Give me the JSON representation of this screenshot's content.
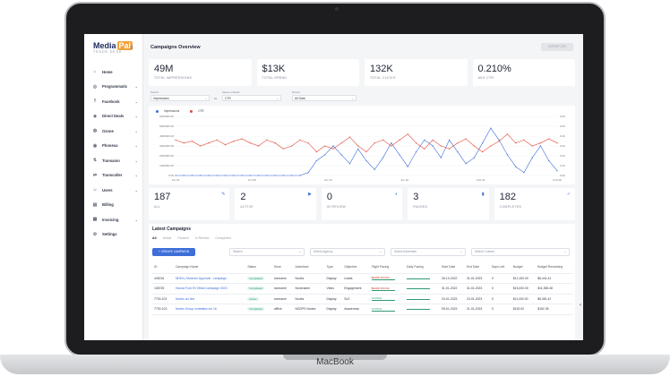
{
  "device_label": "MacBook",
  "logo": {
    "text": "Media",
    "tag": "Pal",
    "sub": "TRADE DESK"
  },
  "sidebar": {
    "items": [
      {
        "label": "Home",
        "icon": "home-icon",
        "glyph": "⌂",
        "chevron": false
      },
      {
        "label": "Programmatic",
        "icon": "gamepad-icon",
        "glyph": "◎",
        "chevron": true
      },
      {
        "label": "Facebook",
        "icon": "facebook-icon",
        "glyph": "f",
        "chevron": true
      },
      {
        "label": "Direct Deals",
        "icon": "handshake-icon",
        "glyph": "◈",
        "chevron": true
      },
      {
        "label": "Ozone",
        "icon": "globe-icon",
        "glyph": "◍",
        "chevron": true
      },
      {
        "label": "Phonexa",
        "icon": "shield-icon",
        "glyph": "◉",
        "chevron": true
      },
      {
        "label": "Transaion",
        "icon": "transaction-icon",
        "glyph": "⇅",
        "chevron": true
      },
      {
        "label": "Transcoller",
        "icon": "transfer-icon",
        "glyph": "⇄",
        "chevron": true
      },
      {
        "label": "Users",
        "icon": "users-icon",
        "glyph": "☺",
        "chevron": true
      },
      {
        "label": "Billing",
        "icon": "billing-icon",
        "glyph": "▤",
        "chevron": false
      },
      {
        "label": "Invoicing",
        "icon": "invoice-icon",
        "glyph": "▦",
        "chevron": true
      },
      {
        "label": "Settings",
        "icon": "gear-icon",
        "glyph": "⚙",
        "chevron": false
      }
    ]
  },
  "header": {
    "title": "Campaigns Overview",
    "export_label": "EXPORT CSV"
  },
  "stats": [
    {
      "value": "49M",
      "label": "TOTAL IMPRESSIONS"
    },
    {
      "value": "$13K",
      "label": "TOTAL SPEND"
    },
    {
      "value": "132K",
      "label": "TOTAL CLICKS"
    },
    {
      "value": "0.210%",
      "label": "AVG CTR"
    }
  ],
  "filters": {
    "period_label": "Period",
    "period_value": "Impressions",
    "vs": "vs",
    "compare_label": "Select a Metric",
    "compare_value": "CTR",
    "range_label": "Period",
    "range_value": "All Data"
  },
  "chart_data": {
    "type": "line",
    "x_ticks": [
      "Jun 01",
      "Jun 08",
      "Jun 15",
      "Jun 22",
      "Feb 01",
      "Feb 08"
    ],
    "series": [
      {
        "name": "Impressions",
        "color": "#3e6ed8",
        "values": [
          0,
          0,
          0,
          0,
          0,
          0,
          0,
          0,
          0,
          0,
          0,
          0,
          0,
          0,
          0,
          0,
          0.05,
          0.25,
          0.35,
          0.5,
          0.35,
          0.2,
          0.45,
          0.25,
          0.1,
          0.3,
          0.55,
          0.35,
          0.15,
          0.4,
          0.6,
          0.5,
          0.3,
          0.6,
          0.4,
          0.2,
          0.3,
          0.55,
          0.8,
          0.6,
          0.35,
          0.15,
          0.05,
          0.3,
          0.5,
          0.25,
          0.08
        ]
      },
      {
        "name": "CTR",
        "color": "#e24b3b",
        "values": [
          0.6,
          0.55,
          0.58,
          0.5,
          0.55,
          0.6,
          0.52,
          0.58,
          0.62,
          0.55,
          0.5,
          0.6,
          0.55,
          0.45,
          0.5,
          0.6,
          0.55,
          0.4,
          0.5,
          0.45,
          0.55,
          0.65,
          0.5,
          0.4,
          0.55,
          0.6,
          0.5,
          0.6,
          0.7,
          0.55,
          0.45,
          0.6,
          0.5,
          0.45,
          0.55,
          0.62,
          0.5,
          0.4,
          0.5,
          0.58,
          0.7,
          0.55,
          0.6,
          0.5,
          0.55,
          0.62,
          0.55
        ]
      }
    ],
    "y_left_ticks": [
      "6000000.00",
      "5000000.00",
      "4000000.00",
      "3000000.00",
      "2000000.00",
      "1000000.00",
      "0.00"
    ],
    "y_right_ticks": [
      "0.60",
      "0.50",
      "0.40",
      "0.30",
      "0.20",
      "0.10",
      "0.00"
    ],
    "legend_position": "top-left"
  },
  "counts": [
    {
      "value": "187",
      "label": "ALL",
      "icon": "edit-icon",
      "glyph": "✎"
    },
    {
      "value": "2",
      "label": "ACTIVE",
      "icon": "play-icon",
      "glyph": "▶"
    },
    {
      "value": "0",
      "label": "IN REVIEW",
      "icon": "review-icon",
      "glyph": "◐"
    },
    {
      "value": "3",
      "label": "PAUSED",
      "icon": "pause-icon",
      "glyph": "▮"
    },
    {
      "value": "182",
      "label": "COMPLETED",
      "icon": "check-icon",
      "glyph": "✓"
    }
  ],
  "latest": {
    "title": "Latest Campaigns",
    "tabs": [
      "All",
      "Active",
      "Paused",
      "In Review",
      "Completed"
    ],
    "create_label": "+ CREATE CAMPAIGN",
    "search_placeholder": "Search",
    "agency_placeholder": "Select Agency",
    "advertiser_placeholder": "Select Advertiser",
    "columns_label": "Select Column",
    "columns": [
      "ID",
      "Campaign Name",
      "Status",
      "Store",
      "Advertiser",
      "Type",
      "Objective",
      "Flight Pacing",
      "Daily Pacing",
      "Start Date",
      "End Date",
      "Days Left",
      "Budget",
      "Budget Remaining"
    ],
    "rows": [
      [
        "449216",
        "NDEA | Motorsin Approval - campaign",
        "Completed",
        "nonname",
        "Nodes",
        "Display",
        "Leads",
        "BEHIND PACING",
        "",
        "26-10-2022",
        "31-01-2023",
        "0",
        "$12,150.00",
        "$6,441.41"
      ],
      [
        "108725",
        "Honda Ford EV Mixed campaign 2023",
        "Completed",
        "nonname",
        "Nonename",
        "Video",
        "Engagement",
        "BEHIND PACING",
        "",
        "31-01-2022",
        "31-01-2023",
        "0",
        "$15,000.00",
        "$11,355.48"
      ],
      [
        "7700-102",
        "Nodes ctv line",
        "Active",
        "nonname",
        "Nodes",
        "Display",
        "SLE",
        "ON PACE",
        "",
        "20-01-2023",
        "23-01-2023",
        "0",
        "$11,000.00",
        "$5,381.42"
      ],
      [
        "7700-103",
        "Nodes Group nodetalks cto 16",
        "Completed",
        "offline",
        "NGDPS Nodes",
        "Display",
        "Awareness",
        "ON PACE",
        "",
        "09-01-2023",
        "21-01-2023",
        "0",
        "$162.00",
        "$162.35"
      ]
    ]
  }
}
